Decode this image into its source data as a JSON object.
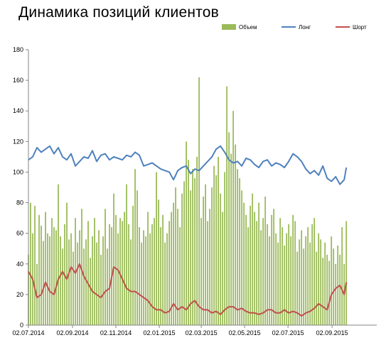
{
  "title": "Динамика позиций клиентов",
  "legend": {
    "volume": "Объем",
    "long": "Лонг",
    "short": "Шорт"
  },
  "colors": {
    "volume": "#9bbb59",
    "long": "#4f81bd",
    "short": "#c0504d",
    "axis": "#868686"
  },
  "chart_data": {
    "type": "line",
    "title": "Динамика позиций клиентов",
    "xlabel": "",
    "ylabel": "",
    "ylim": [
      0,
      180
    ],
    "yticks": [
      0,
      20,
      40,
      60,
      80,
      100,
      120,
      140,
      160,
      180
    ],
    "xticks": [
      "02.07.2014",
      "02.09.2014",
      "02.11.2014",
      "02.01.2015",
      "02.03.2015",
      "02.05.2015",
      "02.07.2015",
      "02.09.2015"
    ],
    "grid": false,
    "legend_position": "top-right",
    "series": [
      {
        "name": "Объем",
        "type": "bar",
        "x": [
          "2014-07-02",
          "2014-07-05",
          "2014-07-08",
          "2014-07-11",
          "2014-07-14",
          "2014-07-17",
          "2014-07-20",
          "2014-07-23",
          "2014-07-26",
          "2014-07-29",
          "2014-08-01",
          "2014-08-04",
          "2014-08-07",
          "2014-08-10",
          "2014-08-13",
          "2014-08-16",
          "2014-08-19",
          "2014-08-22",
          "2014-08-25",
          "2014-08-28",
          "2014-08-31",
          "2014-09-03",
          "2014-09-06",
          "2014-09-09",
          "2014-09-12",
          "2014-09-15",
          "2014-09-18",
          "2014-09-21",
          "2014-09-24",
          "2014-09-27",
          "2014-09-30",
          "2014-10-03",
          "2014-10-06",
          "2014-10-09",
          "2014-10-12",
          "2014-10-15",
          "2014-10-18",
          "2014-10-21",
          "2014-10-24",
          "2014-10-27",
          "2014-10-30",
          "2014-11-02",
          "2014-11-05",
          "2014-11-08",
          "2014-11-11",
          "2014-11-14",
          "2014-11-17",
          "2014-11-20",
          "2014-11-23",
          "2014-11-26",
          "2014-11-29",
          "2014-12-02",
          "2014-12-05",
          "2014-12-08",
          "2014-12-11",
          "2014-12-14",
          "2014-12-17",
          "2014-12-20",
          "2014-12-23",
          "2014-12-26",
          "2014-12-29",
          "2015-01-01",
          "2015-01-04",
          "2015-01-07",
          "2015-01-10",
          "2015-01-13",
          "2015-01-16",
          "2015-01-19",
          "2015-01-22",
          "2015-01-25",
          "2015-01-28",
          "2015-01-31",
          "2015-02-03",
          "2015-02-06",
          "2015-02-09",
          "2015-02-12",
          "2015-02-15",
          "2015-02-18",
          "2015-02-21",
          "2015-02-24",
          "2015-02-27",
          "2015-03-02",
          "2015-03-05",
          "2015-03-08",
          "2015-03-11",
          "2015-03-14",
          "2015-03-17",
          "2015-03-20",
          "2015-03-23",
          "2015-03-26",
          "2015-03-29",
          "2015-04-01",
          "2015-04-04",
          "2015-04-07",
          "2015-04-10",
          "2015-04-13",
          "2015-04-16",
          "2015-04-19",
          "2015-04-22",
          "2015-04-25",
          "2015-04-28",
          "2015-05-01",
          "2015-05-04",
          "2015-05-07",
          "2015-05-10",
          "2015-05-13",
          "2015-05-16",
          "2015-05-19",
          "2015-05-22",
          "2015-05-25",
          "2015-05-28",
          "2015-05-31",
          "2015-06-03",
          "2015-06-06",
          "2015-06-09",
          "2015-06-12",
          "2015-06-15",
          "2015-06-18",
          "2015-06-21",
          "2015-06-24",
          "2015-06-27",
          "2015-06-30",
          "2015-07-03",
          "2015-07-06",
          "2015-07-09",
          "2015-07-12",
          "2015-07-15",
          "2015-07-18",
          "2015-07-21",
          "2015-07-24",
          "2015-07-27",
          "2015-07-30",
          "2015-08-02",
          "2015-08-05",
          "2015-08-08",
          "2015-08-11",
          "2015-08-14",
          "2015-08-17",
          "2015-08-20",
          "2015-08-23",
          "2015-08-26",
          "2015-08-29",
          "2015-09-01",
          "2015-09-04",
          "2015-09-07",
          "2015-09-10",
          "2015-09-13",
          "2015-09-16",
          "2015-09-19",
          "2015-09-22"
        ],
        "values": [
          46,
          80,
          60,
          78,
          40,
          72,
          65,
          55,
          74,
          60,
          58,
          70,
          64,
          62,
          92,
          58,
          50,
          66,
          80,
          56,
          60,
          48,
          70,
          54,
          62,
          76,
          50,
          56,
          68,
          44,
          58,
          70,
          54,
          62,
          46,
          58,
          76,
          50,
          66,
          64,
          86,
          72,
          60,
          70,
          68,
          74,
          92,
          66,
          56,
          78,
          102,
          88,
          64,
          54,
          62,
          58,
          74,
          60,
          66,
          70,
          100,
          82,
          64,
          72,
          54,
          60,
          68,
          74,
          80,
          90,
          76,
          64,
          86,
          94,
          120,
          108,
          88,
          102,
          96,
          110,
          162,
          70,
          84,
          92,
          68,
          76,
          90,
          104,
          98,
          110,
          86,
          74,
          100,
          156,
          126,
          112,
          140,
          118,
          102,
          96,
          88,
          80,
          72,
          64,
          78,
          86,
          74,
          68,
          80,
          62,
          70,
          84,
          66,
          58,
          72,
          76,
          60,
          54,
          70,
          64,
          52,
          60,
          66,
          58,
          72,
          68,
          48,
          56,
          62,
          50,
          58,
          64,
          54,
          66,
          70,
          48,
          60,
          56,
          44,
          54,
          46,
          42,
          58,
          50,
          40,
          52,
          46,
          64,
          40,
          68
        ]
      },
      {
        "name": "Лонг",
        "type": "line",
        "x": [
          "2014-07-02",
          "2014-07-08",
          "2014-07-14",
          "2014-07-20",
          "2014-07-26",
          "2014-08-01",
          "2014-08-07",
          "2014-08-13",
          "2014-08-19",
          "2014-08-25",
          "2014-08-31",
          "2014-09-06",
          "2014-09-12",
          "2014-09-18",
          "2014-09-24",
          "2014-09-30",
          "2014-10-06",
          "2014-10-12",
          "2014-10-18",
          "2014-10-24",
          "2014-10-30",
          "2014-11-05",
          "2014-11-11",
          "2014-11-17",
          "2014-11-23",
          "2014-11-29",
          "2014-12-05",
          "2014-12-11",
          "2014-12-17",
          "2014-12-23",
          "2014-12-29",
          "2015-01-04",
          "2015-01-10",
          "2015-01-16",
          "2015-01-22",
          "2015-01-28",
          "2015-02-03",
          "2015-02-09",
          "2015-02-15",
          "2015-02-21",
          "2015-02-27",
          "2015-03-05",
          "2015-03-11",
          "2015-03-17",
          "2015-03-23",
          "2015-03-29",
          "2015-04-04",
          "2015-04-10",
          "2015-04-16",
          "2015-04-22",
          "2015-04-28",
          "2015-05-04",
          "2015-05-10",
          "2015-05-16",
          "2015-05-22",
          "2015-05-28",
          "2015-06-03",
          "2015-06-09",
          "2015-06-15",
          "2015-06-21",
          "2015-06-27",
          "2015-07-03",
          "2015-07-09",
          "2015-07-15",
          "2015-07-21",
          "2015-07-27",
          "2015-08-02",
          "2015-08-08",
          "2015-08-14",
          "2015-08-20",
          "2015-08-26",
          "2015-09-01",
          "2015-09-07",
          "2015-09-13",
          "2015-09-19",
          "2015-09-22"
        ],
        "values": [
          108,
          110,
          116,
          113,
          115,
          117,
          112,
          116,
          110,
          108,
          112,
          104,
          107,
          110,
          109,
          114,
          107,
          111,
          112,
          108,
          110,
          109,
          108,
          111,
          110,
          113,
          111,
          104,
          105,
          106,
          104,
          102,
          101,
          100,
          95,
          101,
          103,
          104,
          99,
          102,
          101,
          104,
          107,
          110,
          115,
          117,
          113,
          108,
          106,
          107,
          104,
          109,
          108,
          105,
          103,
          107,
          108,
          104,
          106,
          105,
          103,
          107,
          112,
          110,
          107,
          102,
          99,
          101,
          98,
          104,
          96,
          94,
          97,
          92,
          95,
          103
        ]
      },
      {
        "name": "Шорт",
        "type": "line",
        "x": [
          "2014-07-02",
          "2014-07-08",
          "2014-07-14",
          "2014-07-20",
          "2014-07-26",
          "2014-08-01",
          "2014-08-07",
          "2014-08-13",
          "2014-08-19",
          "2014-08-25",
          "2014-08-31",
          "2014-09-06",
          "2014-09-12",
          "2014-09-18",
          "2014-09-24",
          "2014-09-30",
          "2014-10-06",
          "2014-10-12",
          "2014-10-18",
          "2014-10-24",
          "2014-10-30",
          "2014-11-05",
          "2014-11-11",
          "2014-11-17",
          "2014-11-23",
          "2014-11-29",
          "2014-12-05",
          "2014-12-11",
          "2014-12-17",
          "2014-12-23",
          "2014-12-29",
          "2015-01-04",
          "2015-01-10",
          "2015-01-16",
          "2015-01-22",
          "2015-01-28",
          "2015-02-03",
          "2015-02-09",
          "2015-02-15",
          "2015-02-21",
          "2015-02-27",
          "2015-03-05",
          "2015-03-11",
          "2015-03-17",
          "2015-03-23",
          "2015-03-29",
          "2015-04-04",
          "2015-04-10",
          "2015-04-16",
          "2015-04-22",
          "2015-04-28",
          "2015-05-04",
          "2015-05-10",
          "2015-05-16",
          "2015-05-22",
          "2015-05-28",
          "2015-06-03",
          "2015-06-09",
          "2015-06-15",
          "2015-06-21",
          "2015-06-27",
          "2015-07-03",
          "2015-07-09",
          "2015-07-15",
          "2015-07-21",
          "2015-07-27",
          "2015-08-02",
          "2015-08-08",
          "2015-08-14",
          "2015-08-20",
          "2015-08-26",
          "2015-09-01",
          "2015-09-07",
          "2015-09-13",
          "2015-09-19",
          "2015-09-22"
        ],
        "values": [
          35,
          30,
          18,
          20,
          28,
          22,
          20,
          30,
          35,
          30,
          38,
          34,
          40,
          32,
          27,
          22,
          20,
          18,
          22,
          24,
          38,
          36,
          30,
          24,
          22,
          22,
          20,
          18,
          16,
          12,
          10,
          10,
          8,
          9,
          14,
          10,
          12,
          10,
          14,
          16,
          12,
          10,
          10,
          8,
          9,
          7,
          10,
          12,
          12,
          10,
          11,
          9,
          8,
          8,
          7,
          8,
          10,
          10,
          8,
          8,
          10,
          8,
          9,
          8,
          6,
          8,
          9,
          11,
          14,
          12,
          10,
          20,
          24,
          26,
          20,
          28
        ]
      }
    ]
  }
}
